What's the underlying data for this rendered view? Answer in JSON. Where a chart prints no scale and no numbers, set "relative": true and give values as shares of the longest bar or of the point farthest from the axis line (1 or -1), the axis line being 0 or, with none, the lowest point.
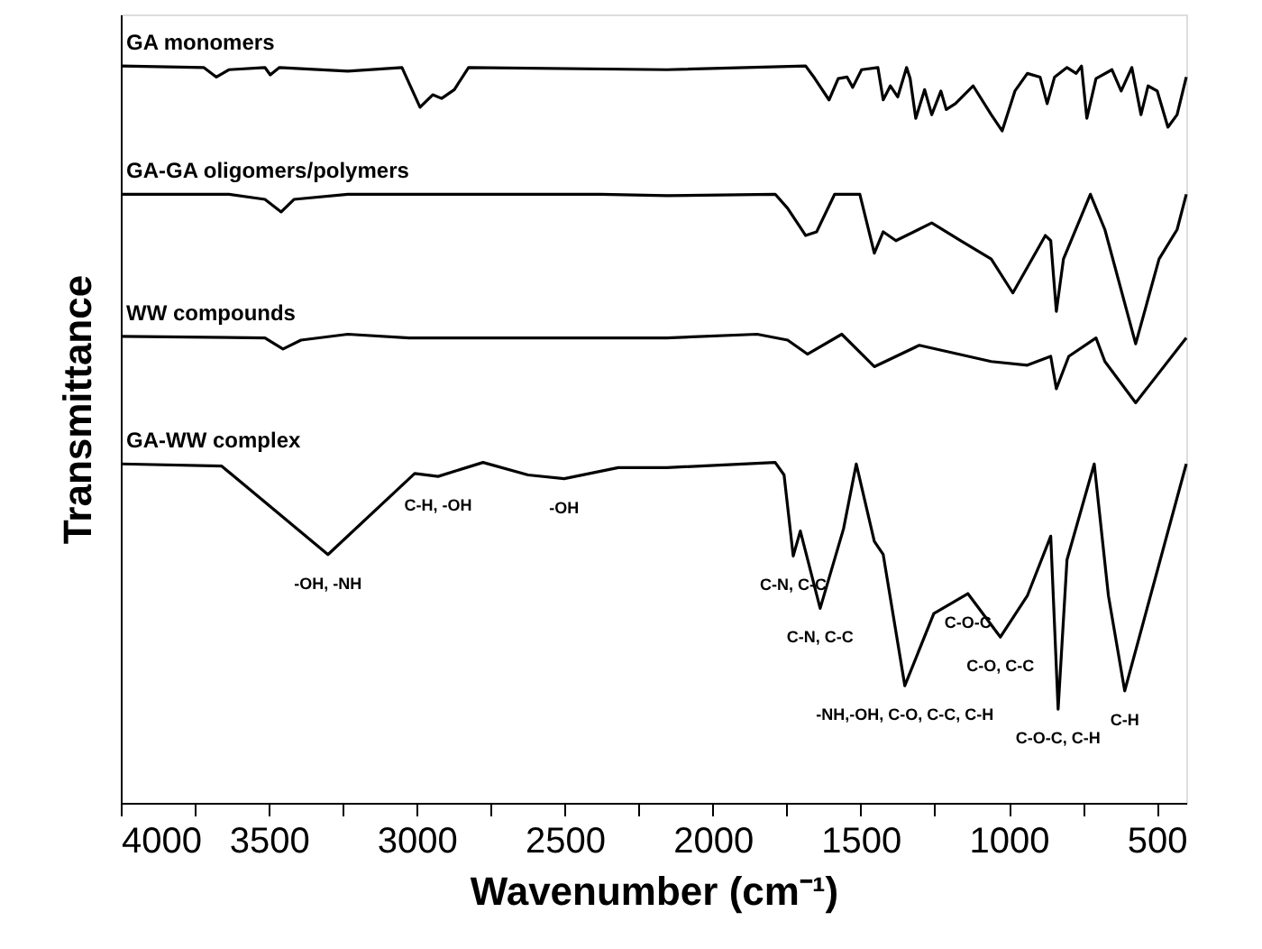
{
  "chart_data": {
    "type": "line",
    "relative": true,
    "xlabel": "Wavenumber (cm⁻¹)",
    "ylabel": "Transmittance",
    "xlim": [
      4000,
      400
    ],
    "xticks": [
      4000,
      {
        "value": 3750,
        "label": null
      },
      3500,
      {
        "value": 3250,
        "label": null
      },
      3000,
      {
        "value": 2750,
        "label": null
      },
      2500,
      {
        "value": 2250,
        "label": null
      },
      2000,
      {
        "value": 1750,
        "label": null
      },
      1500,
      {
        "value": 1250,
        "label": null
      },
      1000,
      {
        "value": 750,
        "label": null
      },
      500
    ],
    "grid": false,
    "legend": false,
    "marker": "none",
    "line_style": "solid",
    "series": [
      {
        "name": "GA monomers",
        "color": "#000000",
        "x": [
          4000,
          3720,
          3677,
          3635,
          3513,
          3495,
          3464,
          3233,
          3050,
          2989,
          2946,
          2916,
          2873,
          2825,
          2155,
          1686,
          1655,
          1607,
          1576,
          1546,
          1527,
          1497,
          1442,
          1424,
          1400,
          1375,
          1345,
          1333,
          1314,
          1284,
          1260,
          1229,
          1211,
          1180,
          1120,
          1059,
          1022,
          979,
          937,
          894,
          870,
          845,
          803,
          772,
          754,
          736,
          705,
          651,
          620,
          584,
          553,
          529,
          498,
          462,
          431,
          400
        ],
        "values": [
          1.0,
          0.998,
          0.985,
          0.995,
          0.998,
          0.988,
          0.998,
          0.993,
          0.998,
          0.944,
          0.961,
          0.956,
          0.968,
          0.998,
          0.995,
          1.0,
          0.983,
          0.954,
          0.983,
          0.985,
          0.971,
          0.995,
          0.998,
          0.954,
          0.973,
          0.958,
          0.998,
          0.983,
          0.929,
          0.968,
          0.934,
          0.966,
          0.941,
          0.949,
          0.973,
          0.934,
          0.912,
          0.966,
          0.99,
          0.985,
          0.949,
          0.985,
          0.998,
          0.99,
          1.0,
          0.929,
          0.983,
          0.995,
          0.966,
          0.998,
          0.934,
          0.973,
          0.966,
          0.917,
          0.934,
          0.985
        ]
      },
      {
        "name": "GA-GA oligomers/polymers",
        "color": "#000000",
        "x": [
          4000,
          3635,
          3513,
          3458,
          3415,
          3233,
          2380,
          2155,
          1789,
          1747,
          1686,
          1649,
          1588,
          1503,
          1454,
          1424,
          1381,
          1260,
          1162,
          1059,
          986,
          876,
          858,
          839,
          815,
          724,
          675,
          571,
          492,
          431,
          400
        ],
        "values": [
          0.826,
          0.826,
          0.819,
          0.802,
          0.819,
          0.826,
          0.826,
          0.824,
          0.826,
          0.807,
          0.77,
          0.775,
          0.826,
          0.826,
          0.746,
          0.775,
          0.763,
          0.787,
          0.763,
          0.738,
          0.692,
          0.77,
          0.763,
          0.667,
          0.738,
          0.826,
          0.778,
          0.623,
          0.738,
          0.778,
          0.826
        ]
      },
      {
        "name": "WW compounds",
        "color": "#000000",
        "x": [
          4000,
          3513,
          3452,
          3391,
          3233,
          3026,
          2380,
          2155,
          1850,
          1747,
          1680,
          1564,
          1454,
          1302,
          1059,
          937,
          858,
          839,
          797,
          705,
          675,
          571,
          400
        ],
        "values": [
          0.633,
          0.631,
          0.616,
          0.628,
          0.636,
          0.631,
          0.631,
          0.631,
          0.636,
          0.628,
          0.609,
          0.636,
          0.592,
          0.621,
          0.599,
          0.594,
          0.606,
          0.562,
          0.606,
          0.631,
          0.599,
          0.543,
          0.631
        ]
      },
      {
        "name": "GA-WW complex",
        "color": "#000000",
        "x": [
          4000,
          3659,
          3300,
          3007,
          2928,
          2776,
          2624,
          2502,
          2319,
          2155,
          1789,
          1759,
          1728,
          1704,
          1637,
          1558,
          1515,
          1454,
          1424,
          1351,
          1253,
          1138,
          1028,
          937,
          858,
          833,
          803,
          711,
          663,
          608,
          400
        ],
        "values": [
          0.46,
          0.457,
          0.337,
          0.447,
          0.443,
          0.462,
          0.445,
          0.44,
          0.455,
          0.455,
          0.462,
          0.445,
          0.335,
          0.369,
          0.264,
          0.372,
          0.46,
          0.355,
          0.337,
          0.159,
          0.257,
          0.284,
          0.225,
          0.281,
          0.362,
          0.127,
          0.33,
          0.46,
          0.281,
          0.152,
          0.46
        ]
      }
    ],
    "annotations": [
      {
        "text": "-OH,  -NH",
        "x": 3300,
        "y": 0.337
      },
      {
        "text": "C-H, -OH",
        "x": 2928,
        "y": 0.443
      },
      {
        "text": "-OH",
        "x": 2502,
        "y": 0.44
      },
      {
        "text": "C-N, C-C",
        "x": 1728,
        "y": 0.335
      },
      {
        "text": "C-N, C-C",
        "x": 1637,
        "y": 0.264
      },
      {
        "text": "C-O-C",
        "x": 1138,
        "y": 0.284
      },
      {
        "text": "C-O, C-C",
        "x": 1028,
        "y": 0.225
      },
      {
        "text": "-NH,-OH, C-O, C-C, C-H",
        "x": 1351,
        "y": 0.159
      },
      {
        "text": "C-O-C, C-H",
        "x": 833,
        "y": 0.127
      },
      {
        "text": "C-H",
        "x": 608,
        "y": 0.152
      }
    ]
  }
}
